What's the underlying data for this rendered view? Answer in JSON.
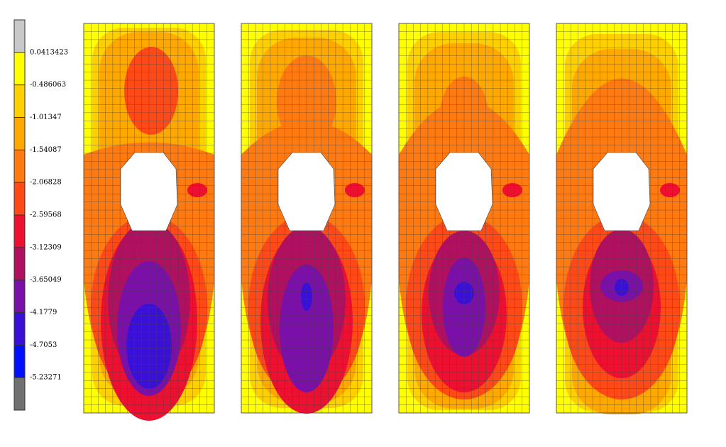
{
  "legend": {
    "levels": [
      0.0413423,
      -0.486063,
      -1.01347,
      -1.54087,
      -2.06828,
      -2.59568,
      -3.12309,
      -3.65049,
      -4.1779,
      -4.7053,
      -5.23271
    ],
    "colors": [
      "#c8c8c8",
      "#ffff00",
      "#ffd000",
      "#ffa800",
      "#ff7a10",
      "#ff4a18",
      "#ee1030",
      "#b01060",
      "#7a10a8",
      "#3a10d8",
      "#0010ff",
      "#707070"
    ]
  }
}
